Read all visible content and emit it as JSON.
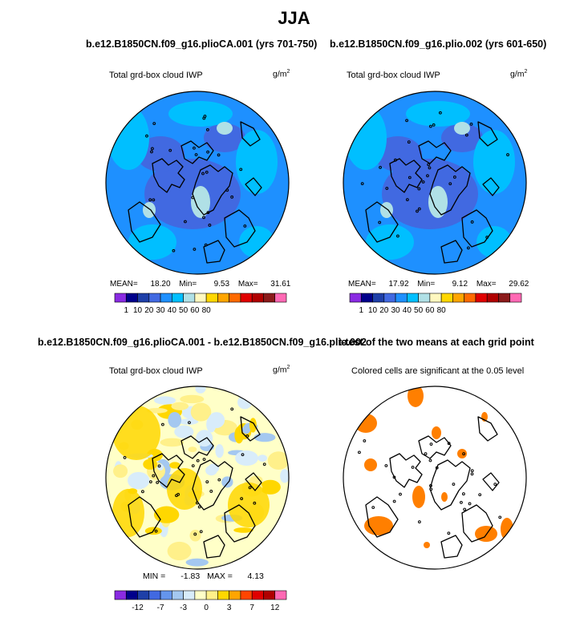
{
  "title": "JJA",
  "panels": [
    {
      "id": "p1",
      "title": "b.e12.B1850CN.f09_g16.plioCA.001 (yrs 701-750)",
      "variable": "Total grd-box cloud IWP",
      "units_base": "g/m",
      "units_exp": "2",
      "stats": {
        "mean_label": "MEAN=",
        "mean": "18.20",
        "min_label": "Min=",
        "min": "9.53",
        "max_label": "Max=",
        "max": "31.61"
      }
    },
    {
      "id": "p2",
      "title": "b.e12.B1850CN.f09_g16.plio.002 (yrs 601-650)",
      "variable": "Total grd-box cloud IWP",
      "units_base": "g/m",
      "units_exp": "2",
      "stats": {
        "mean_label": "MEAN=",
        "mean": "17.92",
        "min_label": "Min=",
        "min": "9.12",
        "max_label": "Max=",
        "max": "29.62"
      }
    },
    {
      "id": "p3",
      "title": "b.e12.B1850CN.f09_g16.plioCA.001 - b.e12.B1850CN.f09_g16.plio.002",
      "variable": "Total grd-box cloud IWP",
      "units_base": "g/m",
      "units_exp": "2",
      "stats": {
        "min_label": "MIN =",
        "min": "-1.83",
        "max_label": "MAX =",
        "max": "4.13"
      }
    },
    {
      "id": "p4",
      "title": "t-test of the two means at each grid point",
      "subtitle": "Colored cells are significant at the 0.05 level"
    }
  ],
  "colorbar_abs": {
    "labels": [
      "1",
      "10",
      "20",
      "30",
      "40",
      "50",
      "60",
      "80"
    ],
    "colors": [
      "#8a2be2",
      "#00008b",
      "#1e3fa8",
      "#4169e1",
      "#1e90ff",
      "#00bfff",
      "#b0e0e6",
      "#fff8c0",
      "#ffd700",
      "#ffa500",
      "#ff6a00",
      "#e00000",
      "#b00000",
      "#8b1a1a",
      "#ff69b4"
    ]
  },
  "colorbar_diff": {
    "labels": [
      "-12",
      "-7",
      "-3",
      "0",
      "3",
      "7",
      "12"
    ],
    "colors": [
      "#8a2be2",
      "#00008b",
      "#1e3fa8",
      "#4169e1",
      "#6495ed",
      "#a4c8f0",
      "#d8ecfa",
      "#ffffc8",
      "#fff08a",
      "#ffd700",
      "#ffa500",
      "#ff4500",
      "#e00000",
      "#b00000",
      "#ff69b4"
    ]
  },
  "map_colors": {
    "abs_base": "#1e90ff",
    "abs_high": "#00bfff",
    "abs_low": "#4169e1",
    "abs_peak": "#b0e0e6",
    "diff_base": "#ffffc8",
    "diff_pos": "#ffd700",
    "diff_pos2": "#fff08a",
    "diff_neg": "#d8ecfa",
    "diff_neg2": "#a4c8f0",
    "signif": "#ff7f00"
  }
}
